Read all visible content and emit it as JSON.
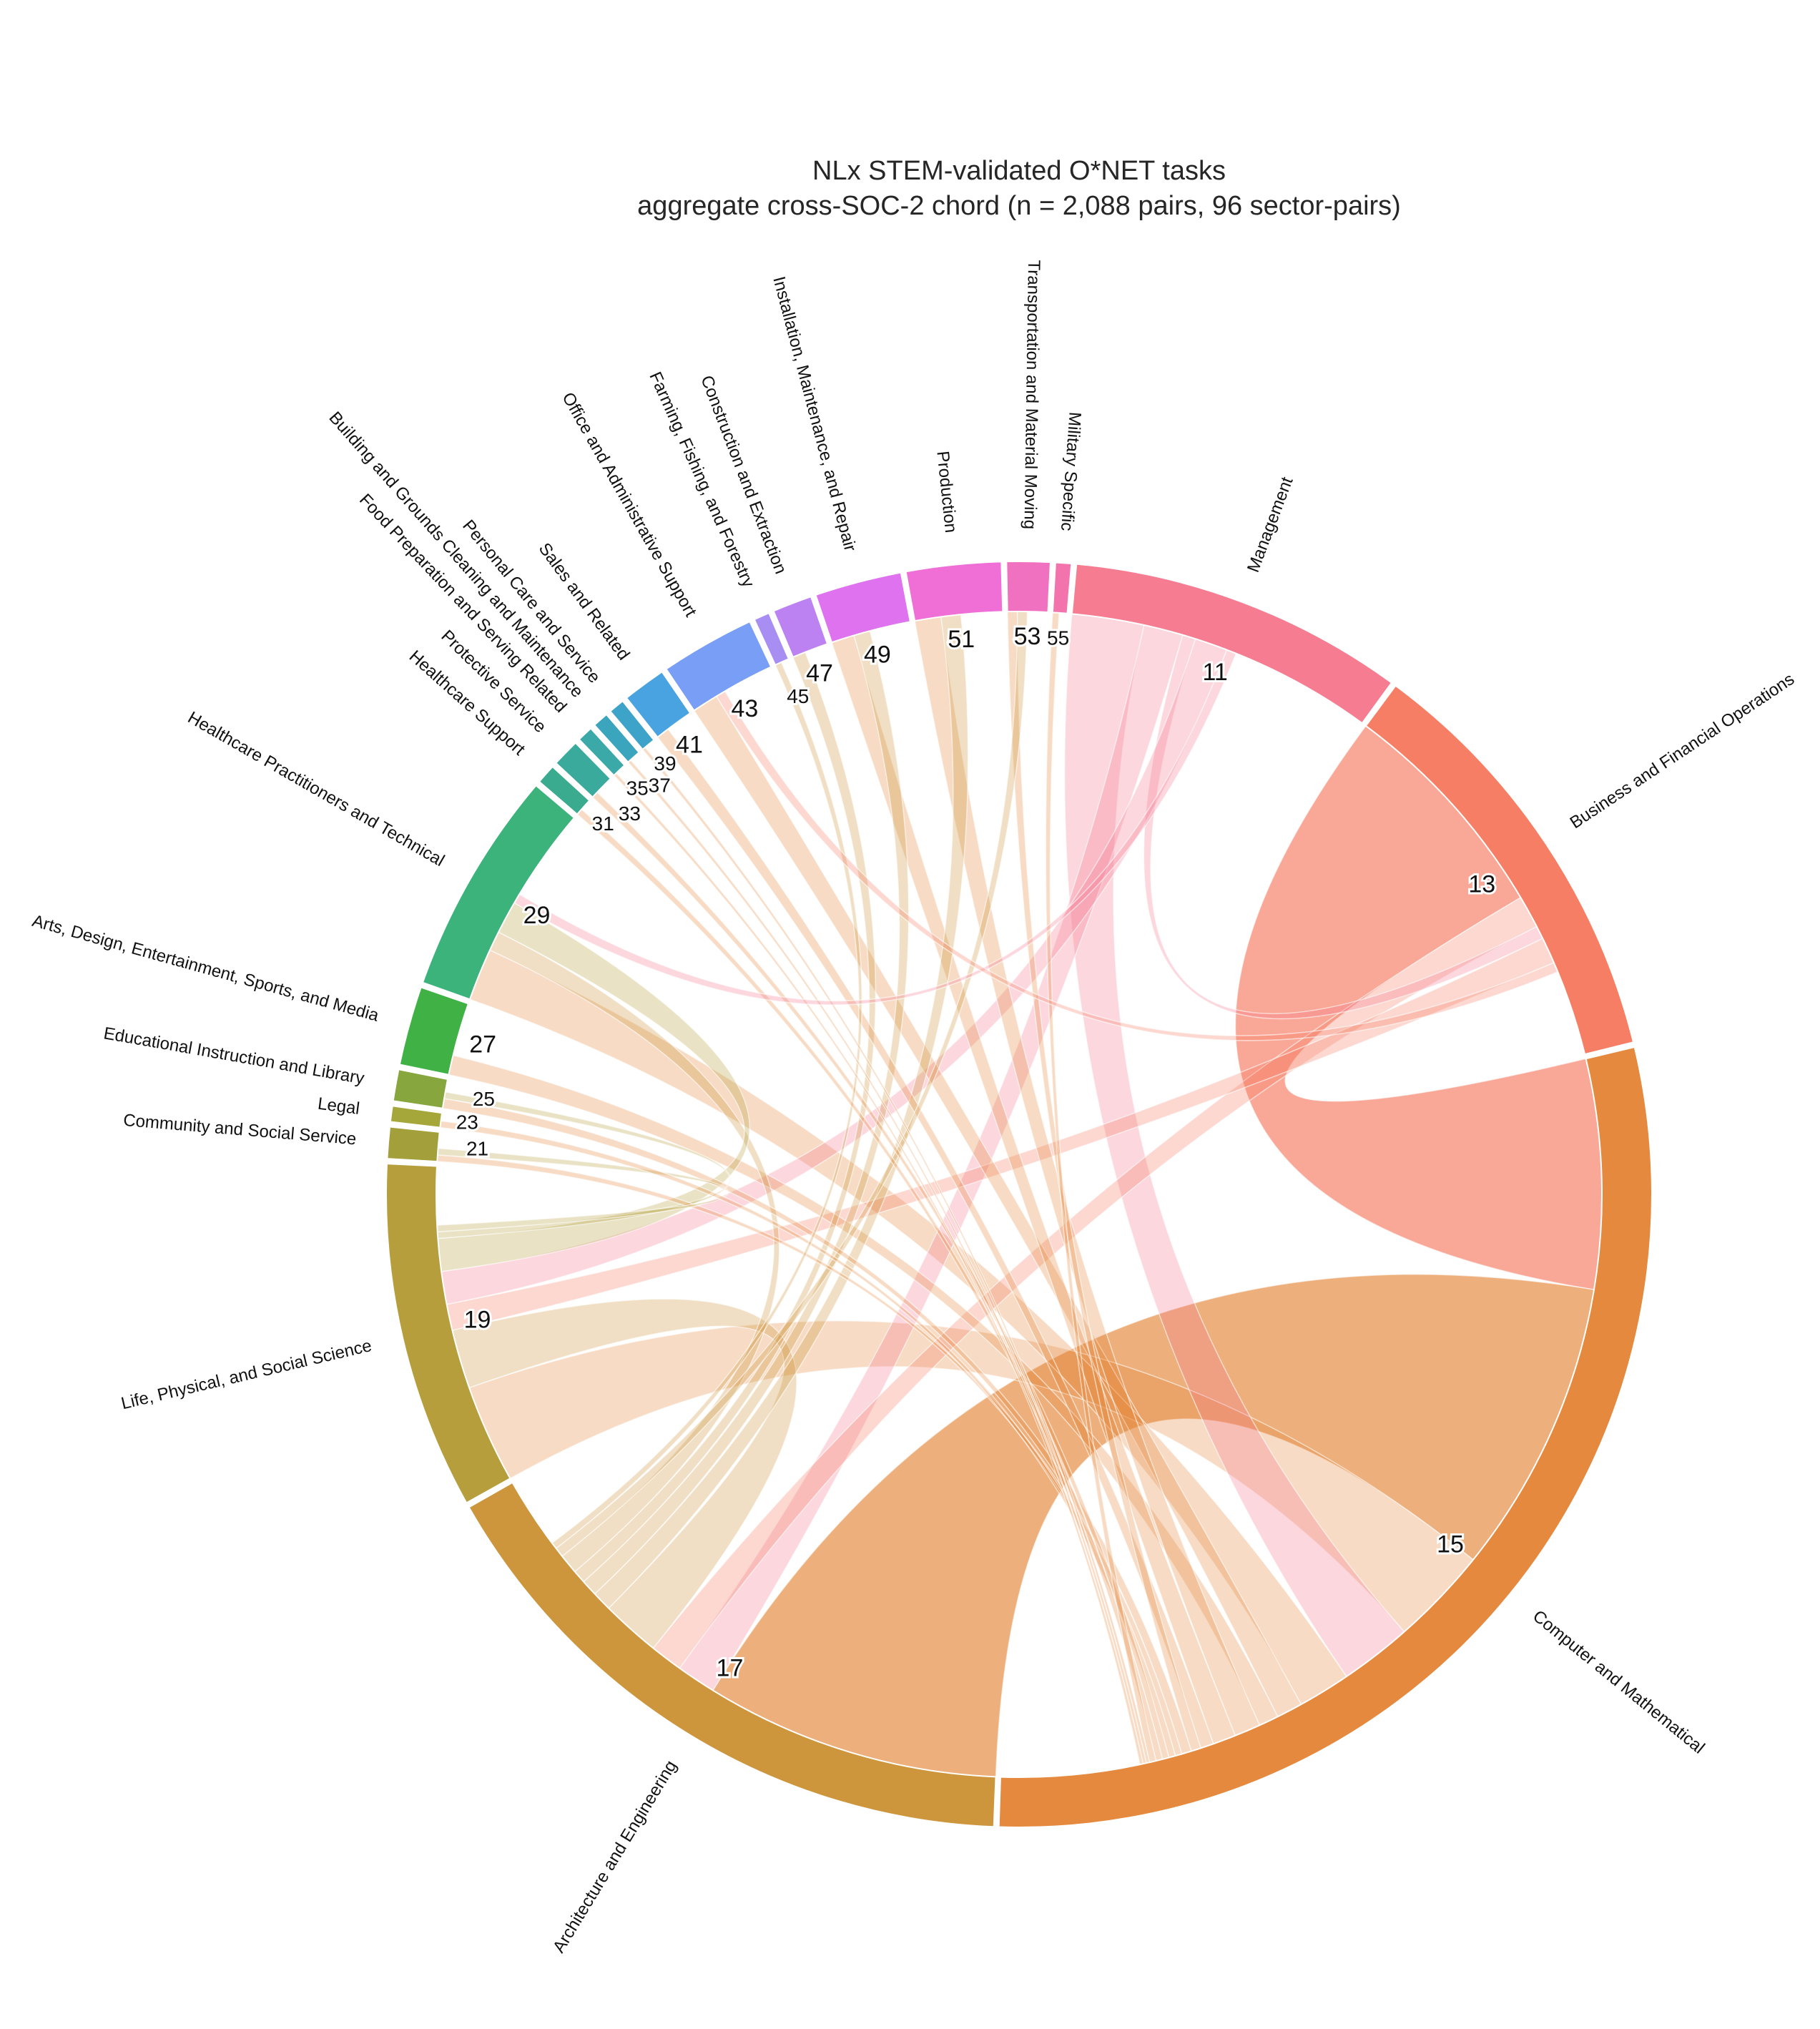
{
  "chart_data": {
    "type": "chord",
    "title": "NLx STEM-validated O*NET tasks",
    "subtitle": "aggregate cross-SOC-2 chord (n = 2,088 pairs, 96 sector-pairs)",
    "sectors": [
      {
        "code": "11",
        "name": "Management",
        "color": "#f67c91",
        "share": 0.085
      },
      {
        "code": "13",
        "name": "Business and Financial Operations",
        "color": "#f67e64",
        "share": 0.109
      },
      {
        "code": "15",
        "name": "Computer and Mathematical",
        "color": "#e4893d",
        "share": 0.29
      },
      {
        "code": "17",
        "name": "Architecture and Engineering",
        "color": "#cd963c",
        "share": 0.16
      },
      {
        "code": "19",
        "name": "Life, Physical, and Social Science",
        "color": "#b69e3d",
        "share": 0.088
      },
      {
        "code": "21",
        "name": "Community and Social Service",
        "color": "#a39f3a",
        "share": 0.008
      },
      {
        "code": "23",
        "name": "Legal",
        "color": "#a6a73a",
        "share": 0.004
      },
      {
        "code": "25",
        "name": "Educational Instruction and Library",
        "color": "#87a63e",
        "share": 0.008
      },
      {
        "code": "27",
        "name": "Arts, Design, Entertainment, Sports, and Media",
        "color": "#3fb145",
        "share": 0.02
      },
      {
        "code": "29",
        "name": "Healthcare Practitioners and Technical",
        "color": "#3db37c",
        "share": 0.057
      },
      {
        "code": "31",
        "name": "Healthcare Support",
        "color": "#3aab8e",
        "share": 0.005
      },
      {
        "code": "33",
        "name": "Protective Service",
        "color": "#3aaa9c",
        "share": 0.007
      },
      {
        "code": "35",
        "name": "Food Preparation and Serving Related",
        "color": "#3aa9a8",
        "share": 0.004
      },
      {
        "code": "37",
        "name": "Building and Grounds Cleaning and Maintenance",
        "color": "#3ba5bd",
        "share": 0.004
      },
      {
        "code": "39",
        "name": "Personal Care and Service",
        "color": "#3ea3c9",
        "share": 0.004
      },
      {
        "code": "41",
        "name": "Sales and Related",
        "color": "#49a3e0",
        "share": 0.011
      },
      {
        "code": "43",
        "name": "Office and Administrative Support",
        "color": "#789ef5",
        "share": 0.024
      },
      {
        "code": "45",
        "name": "Farming, Fishing, and Forestry",
        "color": "#a88ef2",
        "share": 0.004
      },
      {
        "code": "47",
        "name": "Construction and Extraction",
        "color": "#bc82f2",
        "share": 0.01
      },
      {
        "code": "49",
        "name": "Installation, Maintenance, and Repair",
        "color": "#df72ee",
        "share": 0.022
      },
      {
        "code": "51",
        "name": "Production",
        "color": "#ef6fd6",
        "share": 0.024
      },
      {
        "code": "53",
        "name": "Transportation and Material Moving",
        "color": "#f071c0",
        "share": 0.011
      },
      {
        "code": "55",
        "name": "Military Specific",
        "color": "#f374ac",
        "share": 0.004
      }
    ],
    "chords": [
      {
        "source": "13",
        "target": "15",
        "weight": 0.07
      },
      {
        "source": "15",
        "target": "17",
        "weight": 0.09
      },
      {
        "source": "15",
        "target": "19",
        "weight": 0.03
      },
      {
        "source": "11",
        "target": "15",
        "weight": 0.022
      },
      {
        "source": "15",
        "target": "29",
        "weight": 0.016
      },
      {
        "source": "11",
        "target": "17",
        "weight": 0.012
      },
      {
        "source": "13",
        "target": "17",
        "weight": 0.01
      },
      {
        "source": "17",
        "target": "19",
        "weight": 0.018
      },
      {
        "source": "11",
        "target": "13",
        "weight": 0.004
      },
      {
        "source": "13",
        "target": "19",
        "weight": 0.008
      },
      {
        "source": "11",
        "target": "19",
        "weight": 0.01
      },
      {
        "source": "15",
        "target": "43",
        "weight": 0.008
      },
      {
        "source": "15",
        "target": "27",
        "weight": 0.006
      },
      {
        "source": "15",
        "target": "51",
        "weight": 0.008
      },
      {
        "source": "15",
        "target": "49",
        "weight": 0.007
      },
      {
        "source": "17",
        "target": "51",
        "weight": 0.006
      },
      {
        "source": "17",
        "target": "49",
        "weight": 0.005
      },
      {
        "source": "17",
        "target": "47",
        "weight": 0.004
      },
      {
        "source": "17",
        "target": "29",
        "weight": 0.006
      },
      {
        "source": "19",
        "target": "29",
        "weight": 0.01
      },
      {
        "source": "15",
        "target": "41",
        "weight": 0.004
      },
      {
        "source": "15",
        "target": "53",
        "weight": 0.003
      },
      {
        "source": "17",
        "target": "53",
        "weight": 0.003
      },
      {
        "source": "15",
        "target": "25",
        "weight": 0.003
      },
      {
        "source": "19",
        "target": "25",
        "weight": 0.002
      },
      {
        "source": "15",
        "target": "21",
        "weight": 0.002
      },
      {
        "source": "19",
        "target": "21",
        "weight": 0.002
      },
      {
        "source": "15",
        "target": "23",
        "weight": 0.002
      },
      {
        "source": "15",
        "target": "33",
        "weight": 0.002
      },
      {
        "source": "17",
        "target": "45",
        "weight": 0.002
      },
      {
        "source": "15",
        "target": "31",
        "weight": 0.002
      },
      {
        "source": "15",
        "target": "55",
        "weight": 0.002
      },
      {
        "source": "15",
        "target": "39",
        "weight": 0.001
      },
      {
        "source": "15",
        "target": "37",
        "weight": 0.001
      },
      {
        "source": "15",
        "target": "35",
        "weight": 0.001
      },
      {
        "source": "11",
        "target": "29",
        "weight": 0.003
      },
      {
        "source": "13",
        "target": "43",
        "weight": 0.003
      }
    ]
  }
}
